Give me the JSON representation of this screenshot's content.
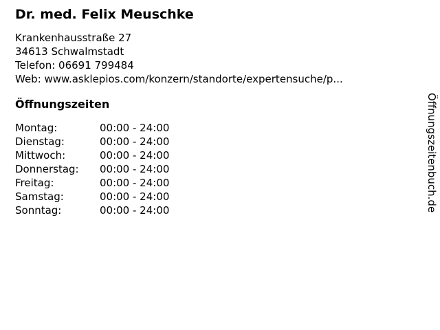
{
  "business": {
    "title": "Dr. med. Felix Meuschke",
    "address_street": "Krankenhausstraße 27",
    "address_city": "34613 Schwalmstadt",
    "phone_line": "Telefon: 06691 799484",
    "web_line": "Web: www.asklepios.com/konzern/standorte/expertensuche/p..."
  },
  "hours": {
    "heading": "Öffnungszeiten",
    "rows": [
      {
        "day": "Montag:",
        "time": "00:00 - 24:00"
      },
      {
        "day": "Dienstag:",
        "time": "00:00 - 24:00"
      },
      {
        "day": "Mittwoch:",
        "time": "00:00 - 24:00"
      },
      {
        "day": "Donnerstag:",
        "time": "00:00 - 24:00"
      },
      {
        "day": "Freitag:",
        "time": "00:00 - 24:00"
      },
      {
        "day": "Samstag:",
        "time": "00:00 - 24:00"
      },
      {
        "day": "Sonntag:",
        "time": "00:00 - 24:00"
      }
    ]
  },
  "watermark": {
    "label": "Öffnungszeitenbuch.de"
  },
  "colors": {
    "text": "#000000",
    "background": "#ffffff"
  }
}
